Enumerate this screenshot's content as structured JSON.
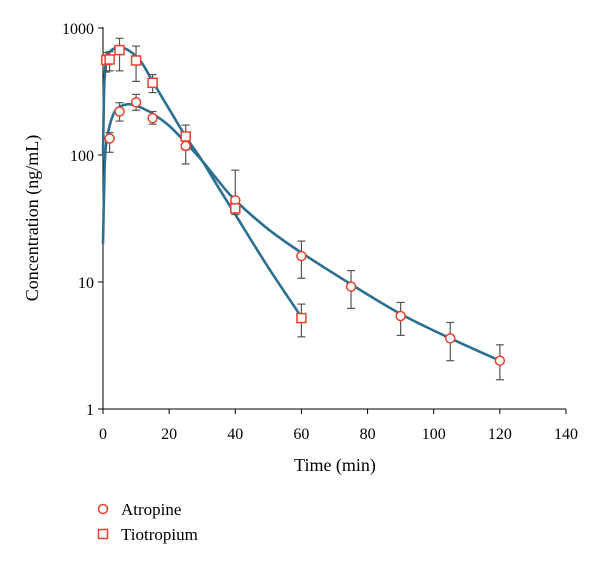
{
  "chart_data": {
    "type": "scatter",
    "title": "",
    "xlabel": "Time (min)",
    "ylabel": "Concentration (ng/mL)",
    "xlim": [
      0,
      140
    ],
    "ylim": [
      1,
      1000
    ],
    "yscale": "log",
    "xticks": [
      0,
      20,
      40,
      60,
      80,
      100,
      120,
      140
    ],
    "xtick_labels": [
      "0",
      "20",
      "40",
      "60",
      "80",
      "100",
      "120",
      "140"
    ],
    "yticks": [
      1,
      10,
      100,
      1000
    ],
    "ytick_labels": [
      "1",
      "10",
      "100",
      "1000"
    ],
    "grid": false,
    "legend_position": "bottom-left",
    "colors": {
      "marker": "#e8402a",
      "fit": "#2b6f91",
      "errorbar": "#555555"
    },
    "series": [
      {
        "name": "Atropine",
        "marker": "circle",
        "x": [
          2,
          5,
          10,
          15,
          25,
          40,
          60,
          75,
          90,
          105,
          120
        ],
        "y": [
          135,
          220,
          260,
          195,
          118,
          44,
          16,
          9.2,
          5.4,
          3.6,
          2.4
        ],
        "err_low": [
          105,
          185,
          225,
          175,
          85,
          35,
          10.7,
          6.2,
          3.8,
          2.4,
          1.7
        ],
        "err_high": [
          150,
          258,
          300,
          220,
          150,
          76,
          21,
          12.3,
          6.9,
          4.8,
          3.2
        ],
        "fit": {
          "x": [
            0,
            0.5,
            1,
            2,
            3,
            4,
            6,
            8,
            10,
            12,
            15,
            20,
            25,
            30,
            35,
            40,
            50,
            60,
            75,
            90,
            105,
            120
          ],
          "y": [
            20,
            80,
            125,
            170,
            205,
            228,
            246,
            251,
            245,
            233,
            212,
            170,
            125,
            90,
            62,
            44,
            26,
            17,
            9.6,
            5.6,
            3.6,
            2.4
          ]
        }
      },
      {
        "name": "Tiotropium",
        "marker": "square",
        "x": [
          1,
          2,
          5,
          10,
          15,
          25,
          40,
          60
        ],
        "y": [
          560,
          565,
          670,
          555,
          370,
          140,
          38,
          5.2
        ],
        "err_low": [
          450,
          460,
          460,
          380,
          310,
          110,
          34,
          3.7
        ],
        "err_high": [
          640,
          650,
          830,
          720,
          430,
          172,
          41,
          6.7
        ],
        "fit": {
          "x": [
            0,
            0.3,
            0.6,
            1,
            1.5,
            2,
            3,
            4,
            5,
            6,
            8,
            10,
            12,
            15,
            20,
            25,
            30,
            35,
            40,
            50,
            60
          ],
          "y": [
            100,
            300,
            450,
            560,
            620,
            650,
            680,
            700,
            705,
            700,
            660,
            600,
            520,
            380,
            230,
            140,
            90,
            55,
            34,
            13,
            5.3
          ]
        }
      }
    ]
  }
}
